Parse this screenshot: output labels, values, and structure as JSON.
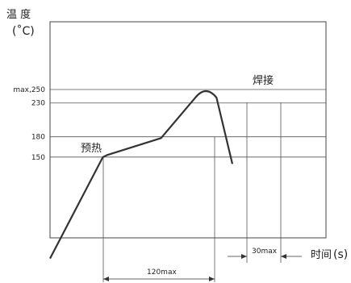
{
  "chart_data": {
    "type": "line",
    "title": "",
    "ylabel": "温 度",
    "yunit": "(˚C)",
    "xlabel": "时间",
    "xunit": "(s)",
    "y_ticks": [
      {
        "label": "max,250",
        "value": 250
      },
      {
        "label": "230",
        "value": 230
      },
      {
        "label": "180",
        "value": 180
      },
      {
        "label": "150",
        "value": 150
      }
    ],
    "ylim": [
      0,
      275
    ],
    "x_events": [
      "preheat_start",
      "preheat_end",
      "peak_window_start",
      "peak_window_end"
    ],
    "curve_points": [
      {
        "x": 0,
        "y": 0
      },
      {
        "x": 1,
        "y": 150
      },
      {
        "x": 1.08,
        "y": 153
      },
      {
        "x": 2.1,
        "y": 178
      },
      {
        "x": 2.75,
        "y": 238
      },
      {
        "x": 2.95,
        "y": 250
      },
      {
        "x": 3.15,
        "y": 238
      },
      {
        "x": 3.45,
        "y": 140
      }
    ],
    "annotations": [
      {
        "key": "preheat",
        "text": "预热"
      },
      {
        "key": "solder",
        "text": "焊接"
      }
    ],
    "dimensions": [
      {
        "key": "preheat_duration",
        "text": "120max"
      },
      {
        "key": "solder_duration",
        "text": "30max"
      }
    ],
    "grid": false,
    "legend": "none"
  }
}
